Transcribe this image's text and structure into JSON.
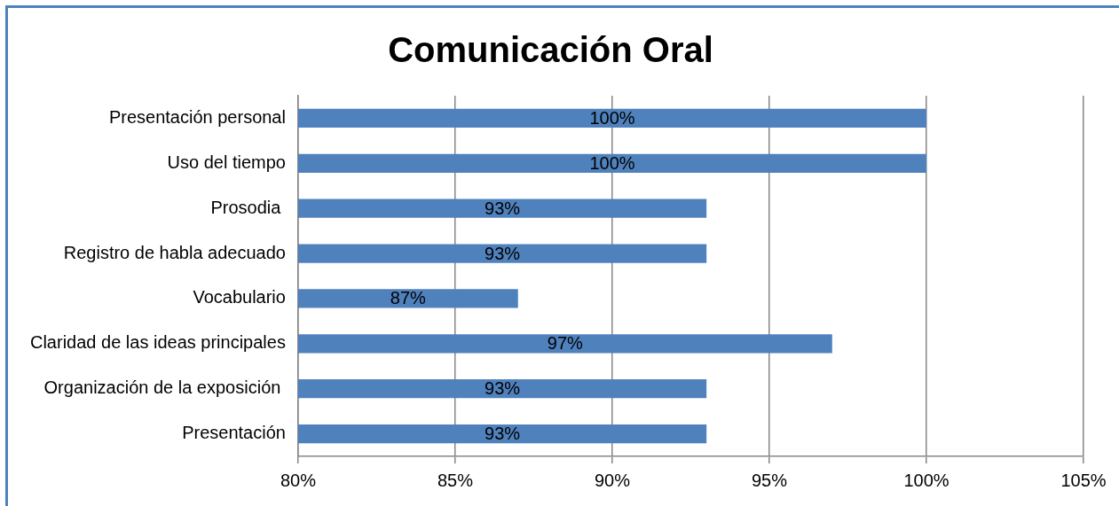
{
  "chart_data": {
    "type": "bar",
    "orientation": "horizontal",
    "title": "Comunicación Oral",
    "categories": [
      "Presentación personal",
      "Uso del tiempo",
      "Prosodia ",
      "Registro de habla adecuado",
      "Vocabulario",
      "Claridad de las ideas principales",
      "Organización de la exposición ",
      "Presentación"
    ],
    "values": [
      100,
      100,
      93,
      93,
      87,
      97,
      93,
      93
    ],
    "value_labels": [
      "100%",
      "100%",
      "93%",
      "93%",
      "87%",
      "97%",
      "93%",
      "93%"
    ],
    "color": "#4f81bd",
    "xlim": [
      80,
      105
    ],
    "xticks": [
      {
        "value": 80,
        "label": "80%"
      },
      {
        "value": 85,
        "label": "85%"
      },
      {
        "value": 90,
        "label": "90%"
      },
      {
        "value": 95,
        "label": "95%"
      },
      {
        "value": 100,
        "label": "100%"
      },
      {
        "value": 105,
        "label": "105%"
      }
    ],
    "grid": "x",
    "legend": false
  }
}
